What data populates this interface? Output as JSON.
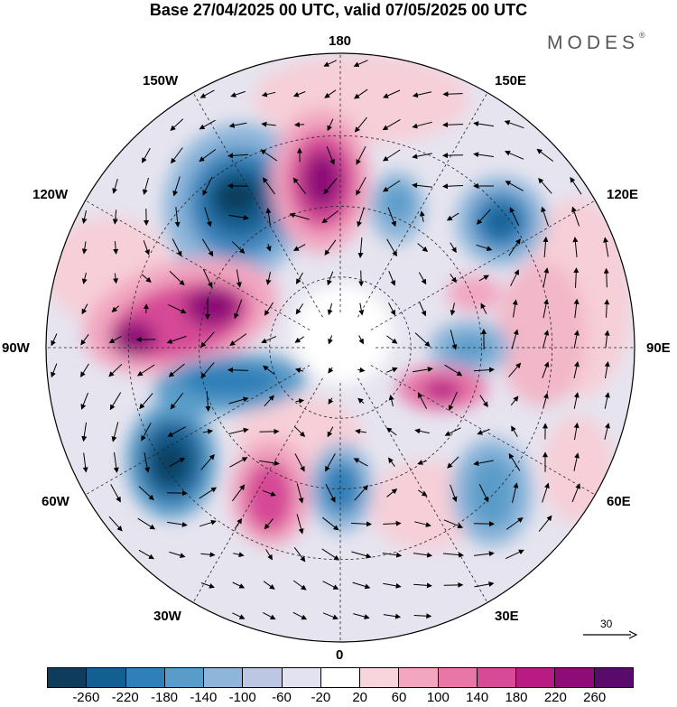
{
  "header": {
    "title": "Base 27/04/2025 00 UTC, valid 07/05/2025 00 UTC",
    "brand": "MODES",
    "brand_mark": "®"
  },
  "map": {
    "projection": "north-polar-stereographic",
    "longitude_labels": {
      "lon_180": "180",
      "lon_150e": "150E",
      "lon_120e": "120E",
      "lon_90e": "90E",
      "lon_60e": "60E",
      "lon_30e": "30E",
      "lon_0": "0",
      "lon_30w": "30W",
      "lon_60w": "60W",
      "lon_90w": "90W",
      "lon_120w": "120W",
      "lon_150w": "150W"
    },
    "field_pattern": "alternating positive/negative anomaly centers around the pole, wind vectors overlaid"
  },
  "vector_reference": {
    "label": "30"
  },
  "colorbar": {
    "colors": [
      "#0d3c5c",
      "#135f92",
      "#2f7fb8",
      "#5a9cc9",
      "#8db6da",
      "#bcc8e3",
      "#e2e2f0",
      "#ffffff",
      "#f8d4dc",
      "#f2a6c0",
      "#e877a8",
      "#d64a96",
      "#b81c84",
      "#8e0b78",
      "#5a0a6a"
    ],
    "tick_labels": [
      "-260",
      "-220",
      "-180",
      "-140",
      "-100",
      "-60",
      "-20",
      "20",
      "60",
      "100",
      "140",
      "180",
      "220",
      "260"
    ]
  }
}
